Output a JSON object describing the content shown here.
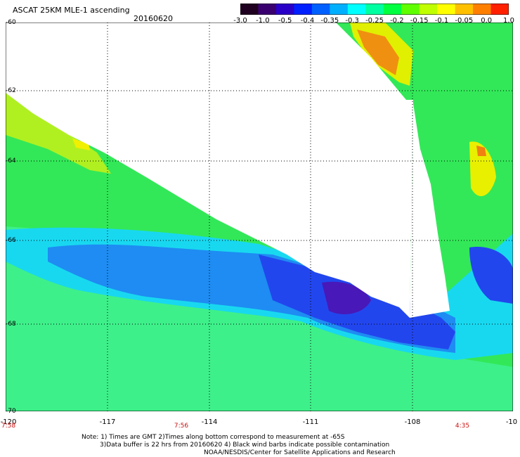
{
  "title": "ASCAT 25KM MLE-1 ascending",
  "date": "20160620",
  "colorbar": {
    "labels": [
      "-3.0",
      "-1.0",
      "-0.5",
      "-0.4",
      "-0.35",
      "-0.3",
      "-0.25",
      "-0.2",
      "-0.15",
      "-0.1",
      "-0.05",
      "0.0",
      "1.0"
    ],
    "colors": [
      "#200020",
      "#3a0070",
      "#2a00c8",
      "#0020ff",
      "#0060ff",
      "#00b0ff",
      "#00ffff",
      "#00ffa0",
      "#00ff40",
      "#60ff00",
      "#c0ff00",
      "#ffff00",
      "#ffc000",
      "#ff8000",
      "#ff2000"
    ]
  },
  "y_axis_labels": [
    "-60",
    "-62",
    "-64",
    "-66",
    "-68",
    "-70"
  ],
  "x_axis_labels": [
    "-120",
    "-117",
    "-114",
    "-111",
    "-108",
    "-10"
  ],
  "time_labels": [
    "7:58",
    "7:56",
    "4:35"
  ],
  "notes": {
    "line1": "Note: 1) Times are GMT 2)Times along bottom correspond to measurement at -65S",
    "line2": "3)Data buffer is 22 hrs from 20160620 4) Black wind barbs indicate possible contamination",
    "line3": "NOAA/NESDIS/Center for Satellite Applications and Research"
  }
}
